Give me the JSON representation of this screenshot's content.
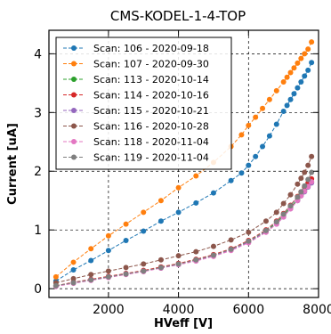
{
  "chart_data": {
    "type": "line",
    "title": "CMS-KODEL-1-4-TOP",
    "xlabel": "HVeff [V]",
    "ylabel": "Current [uA]",
    "xlim": [
      300,
      8000
    ],
    "ylim": [
      -0.15,
      4.4
    ],
    "xticks": [
      2000,
      4000,
      6000,
      8000
    ],
    "yticks": [
      0,
      1,
      2,
      3,
      4
    ],
    "grid": true,
    "grid_style": "dashed",
    "legend_position": "upper-left",
    "series": [
      {
        "name": "Scan: 106 - 2020-09-18",
        "color": "#1f77b4",
        "x": [
          500,
          1000,
          1500,
          2000,
          2500,
          3000,
          3500,
          4000,
          4500,
          5000,
          5500,
          5800,
          6000,
          6200,
          6400,
          6600,
          6800,
          7000,
          7100,
          7200,
          7300,
          7400,
          7500,
          7600,
          7700,
          7800
        ],
        "y": [
          0.13,
          0.32,
          0.48,
          0.65,
          0.82,
          0.98,
          1.15,
          1.3,
          1.46,
          1.63,
          1.84,
          1.97,
          2.1,
          2.25,
          2.42,
          2.6,
          2.8,
          3.02,
          3.12,
          3.22,
          3.32,
          3.42,
          3.52,
          3.62,
          3.72,
          3.85
        ]
      },
      {
        "name": "Scan: 107 - 2020-09-30",
        "color": "#ff7f0e",
        "x": [
          500,
          1000,
          1500,
          2000,
          2500,
          3000,
          3500,
          4000,
          4500,
          5000,
          5500,
          5800,
          6000,
          6200,
          6400,
          6600,
          6800,
          7000,
          7100,
          7200,
          7300,
          7400,
          7500,
          7600,
          7700,
          7800
        ],
        "y": [
          0.2,
          0.45,
          0.68,
          0.9,
          1.1,
          1.3,
          1.5,
          1.72,
          1.92,
          2.15,
          2.42,
          2.62,
          2.78,
          2.92,
          3.07,
          3.22,
          3.37,
          3.52,
          3.6,
          3.68,
          3.76,
          3.84,
          3.92,
          4.0,
          4.08,
          4.2
        ]
      },
      {
        "name": "Scan: 113 - 2020-10-14",
        "color": "#2ca02c",
        "x": [
          500,
          1000,
          1500,
          2000,
          2500,
          3000,
          3500,
          4000,
          4500,
          5000,
          5500,
          6000,
          6500,
          6800,
          7000,
          7200,
          7400,
          7500,
          7600,
          7700,
          7800
        ],
        "y": [
          0.05,
          0.1,
          0.15,
          0.2,
          0.25,
          0.3,
          0.36,
          0.42,
          0.49,
          0.57,
          0.67,
          0.8,
          0.98,
          1.12,
          1.25,
          1.38,
          1.52,
          1.6,
          1.68,
          1.76,
          1.82
        ]
      },
      {
        "name": "Scan: 114 - 2020-10-16",
        "color": "#d62728",
        "x": [
          500,
          1000,
          1500,
          2000,
          2500,
          3000,
          3500,
          4000,
          4500,
          5000,
          5500,
          6000,
          6500,
          6800,
          7000,
          7200,
          7400,
          7500,
          7600,
          7700,
          7800
        ],
        "y": [
          0.05,
          0.11,
          0.16,
          0.21,
          0.26,
          0.31,
          0.37,
          0.43,
          0.5,
          0.58,
          0.68,
          0.82,
          1.0,
          1.15,
          1.28,
          1.42,
          1.57,
          1.65,
          1.73,
          1.8,
          1.87
        ]
      },
      {
        "name": "Scan: 115 - 2020-10-21",
        "color": "#9467bd",
        "x": [
          500,
          1000,
          1500,
          2000,
          2500,
          3000,
          3500,
          4000,
          4500,
          5000,
          5500,
          6000,
          6500,
          6800,
          7000,
          7200,
          7400,
          7500,
          7600,
          7700,
          7800
        ],
        "y": [
          0.04,
          0.1,
          0.15,
          0.2,
          0.25,
          0.3,
          0.35,
          0.41,
          0.48,
          0.56,
          0.66,
          0.79,
          0.97,
          1.1,
          1.22,
          1.36,
          1.5,
          1.58,
          1.65,
          1.73,
          1.8
        ]
      },
      {
        "name": "Scan: 116 - 2020-10-28",
        "color": "#8c564b",
        "x": [
          500,
          1000,
          1500,
          2000,
          2500,
          3000,
          3500,
          4000,
          4500,
          5000,
          5500,
          6000,
          6500,
          6800,
          7000,
          7200,
          7400,
          7500,
          7600,
          7700,
          7800
        ],
        "y": [
          0.1,
          0.17,
          0.24,
          0.3,
          0.36,
          0.42,
          0.49,
          0.56,
          0.63,
          0.72,
          0.83,
          0.96,
          1.15,
          1.3,
          1.45,
          1.6,
          1.78,
          1.88,
          1.98,
          2.1,
          2.25
        ]
      },
      {
        "name": "Scan: 118 - 2020-11-04",
        "color": "#e377c2",
        "x": [
          500,
          1000,
          1500,
          2000,
          2500,
          3000,
          3500,
          4000,
          4500,
          5000,
          5500,
          6000,
          6500,
          6800,
          7000,
          7200,
          7400,
          7500,
          7600,
          7700,
          7800
        ],
        "y": [
          0.04,
          0.09,
          0.14,
          0.19,
          0.24,
          0.29,
          0.35,
          0.41,
          0.47,
          0.55,
          0.65,
          0.78,
          0.96,
          1.1,
          1.22,
          1.36,
          1.5,
          1.58,
          1.66,
          1.74,
          1.82
        ]
      },
      {
        "name": "Scan: 119 - 2020-11-04",
        "color": "#7f7f7f",
        "x": [
          500,
          1000,
          1500,
          2000,
          2500,
          3000,
          3500,
          4000,
          4500,
          5000,
          5500,
          6000,
          6500,
          6800,
          7000,
          7200,
          7400,
          7500,
          7600,
          7700,
          7800
        ],
        "y": [
          0.05,
          0.1,
          0.15,
          0.2,
          0.25,
          0.3,
          0.36,
          0.42,
          0.49,
          0.57,
          0.67,
          0.81,
          0.99,
          1.14,
          1.27,
          1.41,
          1.56,
          1.65,
          1.75,
          1.86,
          1.98
        ]
      }
    ]
  }
}
